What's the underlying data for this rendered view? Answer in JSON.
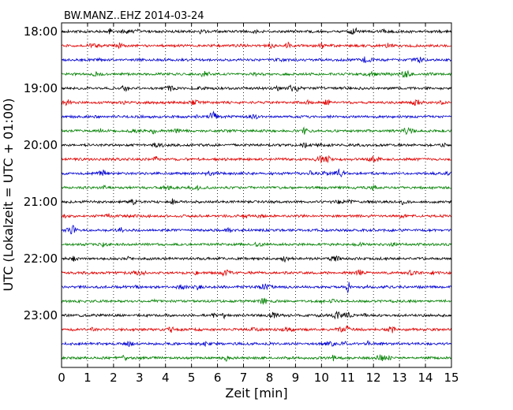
{
  "chart_data": {
    "type": "line",
    "title": "BW.MANZ..EHZ 2014-03-24",
    "xlabel": "Zeit  [min]",
    "ylabel": "UTC (Lokalzeit = UTC + 01:00)",
    "xlim": [
      0,
      15
    ],
    "x_ticks": [
      "0",
      "1",
      "2",
      "3",
      "4",
      "5",
      "6",
      "7",
      "8",
      "9",
      "10",
      "11",
      "12",
      "13",
      "14",
      "15"
    ],
    "y_ticks": [
      "18:00",
      "19:00",
      "20:00",
      "21:00",
      "22:00",
      "23:00"
    ],
    "grid": true,
    "colors": [
      "#000000",
      "#e00000",
      "#0000d0",
      "#008000"
    ],
    "series": [
      {
        "start": "18:00",
        "color": "#000000"
      },
      {
        "start": "18:15",
        "color": "#e00000"
      },
      {
        "start": "18:30",
        "color": "#0000d0"
      },
      {
        "start": "18:45",
        "color": "#008000"
      },
      {
        "start": "19:00",
        "color": "#000000"
      },
      {
        "start": "19:15",
        "color": "#e00000"
      },
      {
        "start": "19:30",
        "color": "#0000d0"
      },
      {
        "start": "19:45",
        "color": "#008000"
      },
      {
        "start": "20:00",
        "color": "#000000"
      },
      {
        "start": "20:15",
        "color": "#e00000"
      },
      {
        "start": "20:30",
        "color": "#0000d0"
      },
      {
        "start": "20:45",
        "color": "#008000"
      },
      {
        "start": "21:00",
        "color": "#000000"
      },
      {
        "start": "21:15",
        "color": "#e00000"
      },
      {
        "start": "21:30",
        "color": "#0000d0"
      },
      {
        "start": "21:45",
        "color": "#008000"
      },
      {
        "start": "22:00",
        "color": "#000000"
      },
      {
        "start": "22:15",
        "color": "#e00000"
      },
      {
        "start": "22:30",
        "color": "#0000d0"
      },
      {
        "start": "22:45",
        "color": "#008000"
      },
      {
        "start": "23:00",
        "color": "#000000"
      },
      {
        "start": "23:15",
        "color": "#e00000"
      },
      {
        "start": "23:30",
        "color": "#0000d0"
      },
      {
        "start": "23:45",
        "color": "#008000"
      }
    ]
  }
}
